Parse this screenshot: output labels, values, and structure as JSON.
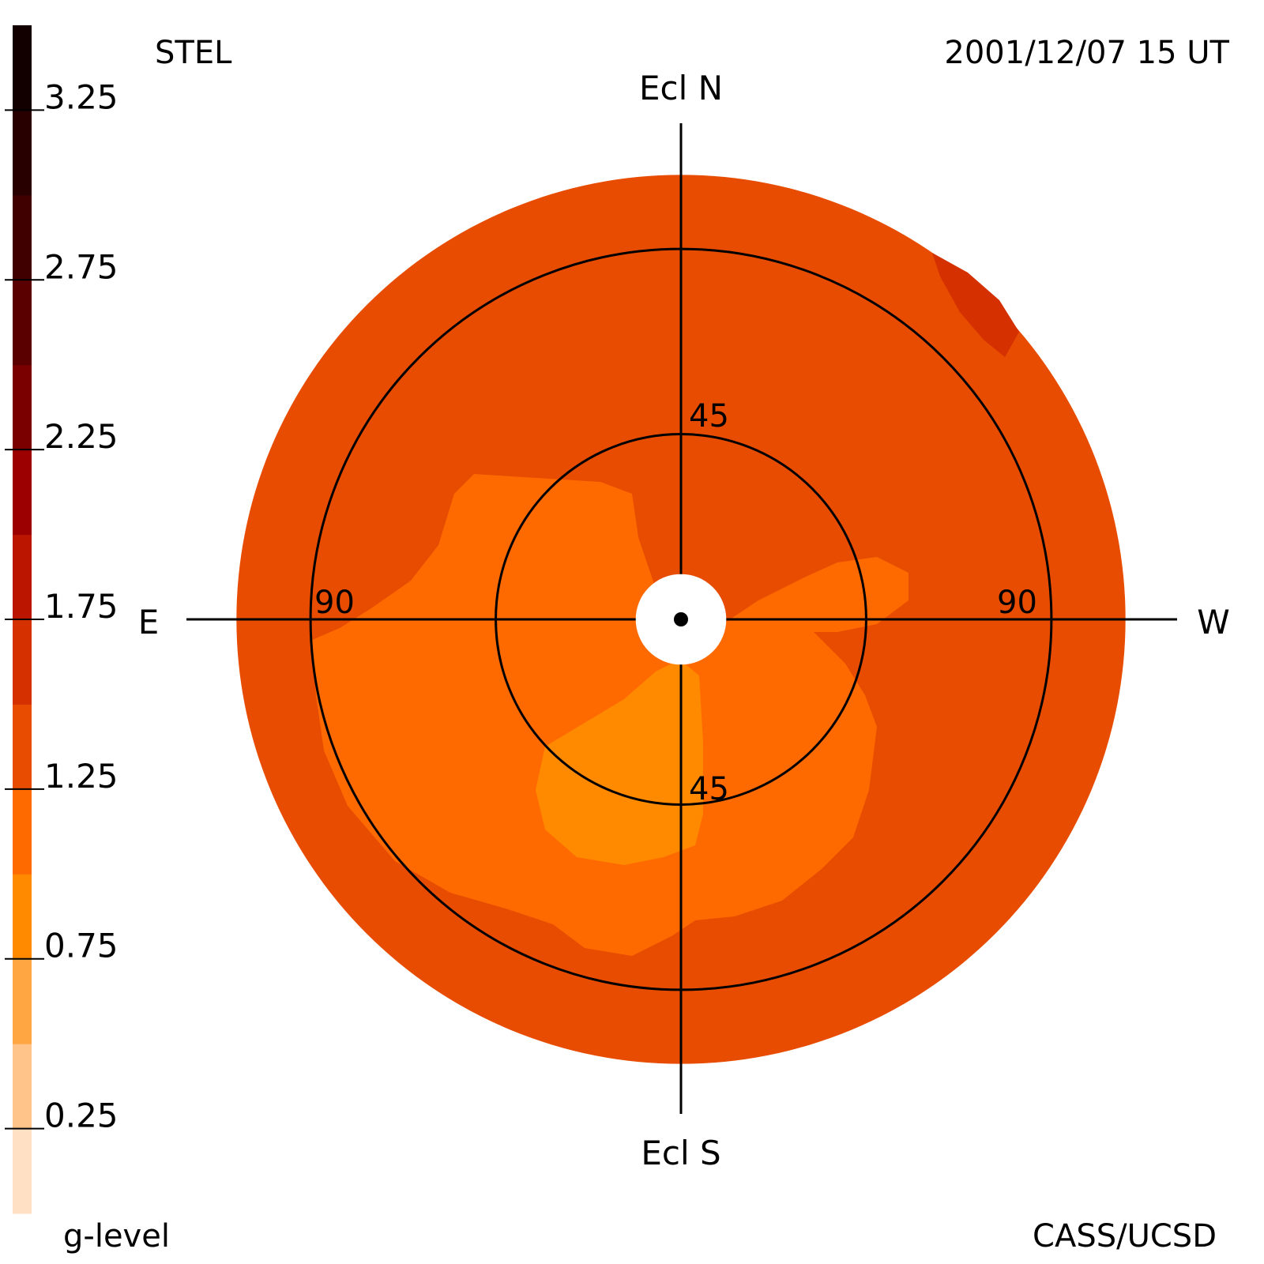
{
  "header": {
    "observatory": "STEL",
    "timestamp": "2001/12/07 15 UT",
    "credit": "CASS/UCSD"
  },
  "chart_data": {
    "type": "heatmap",
    "projection": "fisheye sky map, elongation from Sun",
    "direction_labels": {
      "north": "Ecl N",
      "south": "Ecl S",
      "east": "E",
      "west": "W"
    },
    "ring_labels": [
      {
        "text": "45",
        "position": "north",
        "elongation_deg": 45
      },
      {
        "text": "45",
        "position": "south",
        "elongation_deg": 45
      },
      {
        "text": "90",
        "position": "east",
        "elongation_deg": 90
      },
      {
        "text": "90",
        "position": "west",
        "elongation_deg": 90
      }
    ],
    "rings_deg": [
      45,
      90
    ],
    "field_edge_deg": 108,
    "sun_occulter_deg": 11,
    "colorbar": {
      "label": "g-level",
      "range": [
        0,
        3.5
      ],
      "ticks": [
        {
          "value": 3.25,
          "text": "3.25"
        },
        {
          "value": 2.75,
          "text": "2.75"
        },
        {
          "value": 2.25,
          "text": "2.25"
        },
        {
          "value": 1.75,
          "text": "1.75"
        },
        {
          "value": 1.25,
          "text": "1.25"
        },
        {
          "value": 0.75,
          "text": "0.75"
        },
        {
          "value": 0.25,
          "text": "0.25"
        }
      ],
      "bands": [
        {
          "from": 0.0,
          "to": 0.25,
          "color": "#ffe0c4"
        },
        {
          "from": 0.25,
          "to": 0.5,
          "color": "#ffc48a"
        },
        {
          "from": 0.5,
          "to": 0.75,
          "color": "#ffa642"
        },
        {
          "from": 0.75,
          "to": 1.0,
          "color": "#ff8a00"
        },
        {
          "from": 1.0,
          "to": 1.25,
          "color": "#ff6a00"
        },
        {
          "from": 1.25,
          "to": 1.5,
          "color": "#e84c00"
        },
        {
          "from": 1.5,
          "to": 1.75,
          "color": "#d43000"
        },
        {
          "from": 1.75,
          "to": 2.0,
          "color": "#bb1500"
        },
        {
          "from": 2.0,
          "to": 2.25,
          "color": "#9c0000"
        },
        {
          "from": 2.25,
          "to": 2.5,
          "color": "#7a0000"
        },
        {
          "from": 2.5,
          "to": 2.75,
          "color": "#5a0000"
        },
        {
          "from": 2.75,
          "to": 3.0,
          "color": "#400000"
        },
        {
          "from": 3.0,
          "to": 3.25,
          "color": "#280000"
        },
        {
          "from": 3.25,
          "to": 3.5,
          "color": "#120000"
        }
      ]
    },
    "regions": [
      {
        "name": "background",
        "g_level": 1.3,
        "color": "#e84c00"
      },
      {
        "name": "southern enhancement",
        "g_level": 1.1,
        "color": "#ff6a00"
      },
      {
        "name": "southern core",
        "g_level": 0.9,
        "color": "#ff8a00"
      },
      {
        "name": "north-west patch",
        "g_level": 1.6,
        "color": "#d43000"
      }
    ]
  }
}
